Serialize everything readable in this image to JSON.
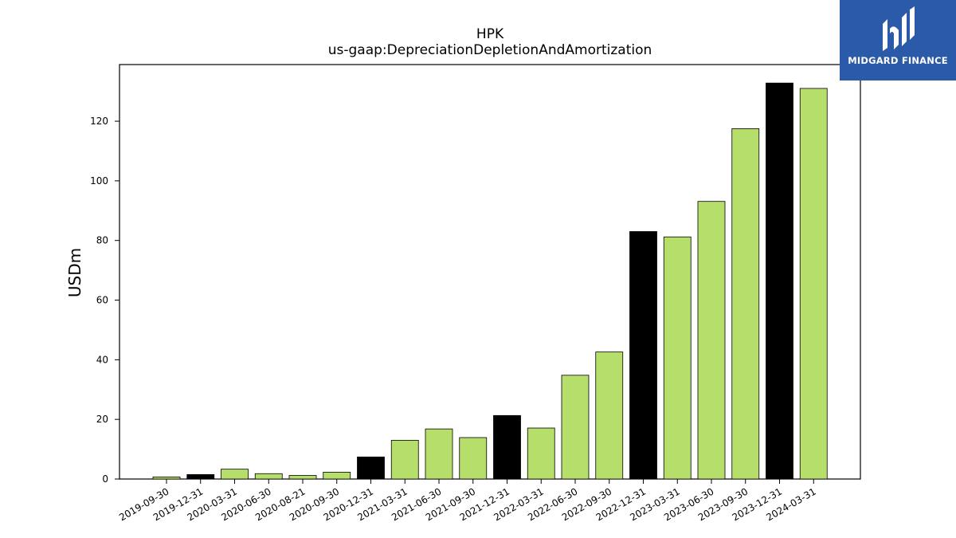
{
  "logo": {
    "text": "MIDGARD FINANCE",
    "background": "#2b5aa8"
  },
  "chart_data": {
    "type": "bar",
    "title": "HPK",
    "subtitle": "us-gaap:DepreciationDepletionAndAmortization",
    "ylabel": "USDm",
    "xlabel": "",
    "ylim": [
      0,
      139
    ],
    "yticks": [
      0,
      20,
      40,
      60,
      80,
      100,
      120
    ],
    "grid": false,
    "colors": {
      "quarterly": "#b5de6b",
      "annual": "#000000",
      "edge": "#000000"
    },
    "categories": [
      "2019-09-30",
      "2019-12-31",
      "2020-03-31",
      "2020-06-30",
      "2020-08-21",
      "2020-09-30",
      "2020-12-31",
      "2021-03-31",
      "2021-06-30",
      "2021-09-30",
      "2021-12-31",
      "2022-03-31",
      "2022-06-30",
      "2022-09-30",
      "2022-12-31",
      "2023-03-31",
      "2023-06-30",
      "2023-09-30",
      "2023-12-31",
      "2024-03-31"
    ],
    "values": [
      0.7,
      1.5,
      3.3,
      1.8,
      1.2,
      2.3,
      7.4,
      13.0,
      16.8,
      13.9,
      21.3,
      17.1,
      34.8,
      42.6,
      83.0,
      81.2,
      93.1,
      117.5,
      132.8,
      131.0
    ],
    "annual_flags": [
      false,
      true,
      false,
      false,
      false,
      false,
      true,
      false,
      false,
      false,
      true,
      false,
      false,
      false,
      true,
      false,
      false,
      false,
      true,
      false
    ]
  }
}
